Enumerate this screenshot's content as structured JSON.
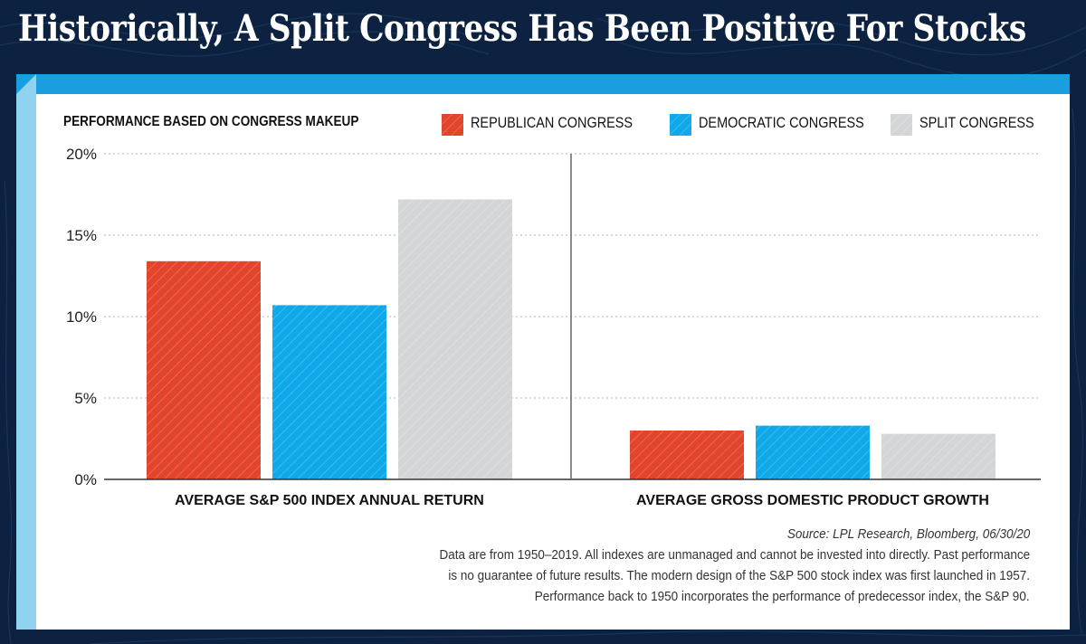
{
  "title": "Historically, A Split Congress Has Been Positive For Stocks",
  "legend": {
    "title": "PERFORMANCE BASED ON CONGRESS MAKEUP",
    "items": [
      {
        "label": "REPUBLICAN CONGRESS",
        "color": "#e2452b"
      },
      {
        "label": "DEMOCRATIC CONGRESS",
        "color": "#0fa9e9"
      },
      {
        "label": "SPLIT CONGRESS",
        "color": "#d3d5d7"
      }
    ]
  },
  "chart_data": {
    "type": "bar",
    "title": "PERFORMANCE BASED ON CONGRESS MAKEUP",
    "categories": [
      "AVERAGE S&P 500 INDEX ANNUAL RETURN",
      "AVERAGE GROSS DOMESTIC PRODUCT GROWTH"
    ],
    "series": [
      {
        "name": "REPUBLICAN CONGRESS",
        "values": [
          13.4,
          3.0
        ]
      },
      {
        "name": "DEMOCRATIC CONGRESS",
        "values": [
          10.7,
          3.3
        ]
      },
      {
        "name": "SPLIT CONGRESS",
        "values": [
          17.2,
          2.8
        ]
      }
    ],
    "ylim": [
      0,
      20
    ],
    "yticks": [
      "0%",
      "5%",
      "10%",
      "15%",
      "20%"
    ],
    "grid": true,
    "xlabel": "",
    "ylabel": ""
  },
  "footnotes": {
    "source": "Source: LPL Research, Bloomberg, 06/30/20",
    "lines": [
      "Data are from 1950–2019. All indexes are unmanaged and cannot be invested into directly. Past performance",
      "is no guarantee of future results. The modern design of the S&P 500 stock index was first launched in 1957.",
      "Performance back to 1950 incorporates the performance of predecessor index, the S&P 90."
    ]
  }
}
